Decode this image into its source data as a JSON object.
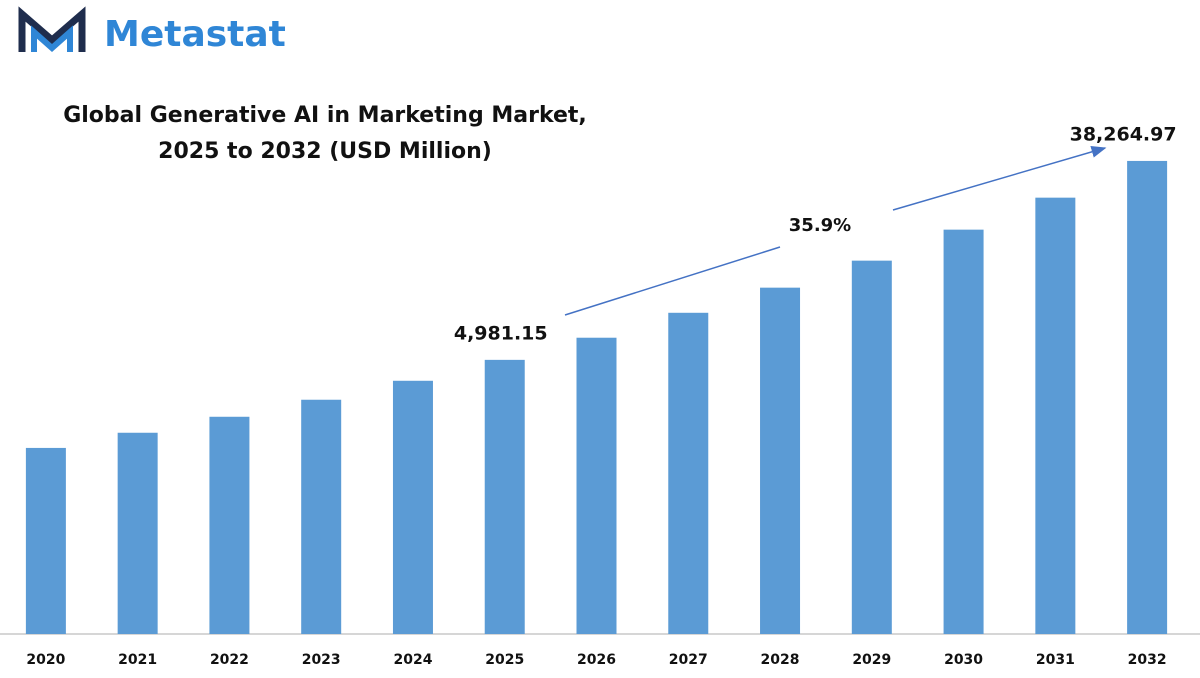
{
  "logo": "Metastat",
  "chart_data": {
    "type": "bar",
    "title": [
      "Global Generative AI in Marketing Market,",
      "2025 to 2032 (USD Million)"
    ],
    "categories": [
      "2020",
      "2021",
      "2022",
      "2023",
      "2024",
      "2025",
      "2026",
      "2027",
      "2028",
      "2029",
      "2030",
      "2031",
      "2032"
    ],
    "values": [
      2020,
      2360,
      2780,
      3310,
      4020,
      4981.15,
      6250,
      8070,
      10440,
      13770,
      18920,
      26260,
      38264.97
    ],
    "value_labels": [
      null,
      null,
      null,
      null,
      null,
      "4,981.15",
      null,
      null,
      null,
      null,
      null,
      null,
      "38,264.97"
    ],
    "color": "#5b9bd5",
    "log_scale": true,
    "ylim": [
      300,
      70000
    ],
    "annotations": [
      "35.9%"
    ]
  }
}
